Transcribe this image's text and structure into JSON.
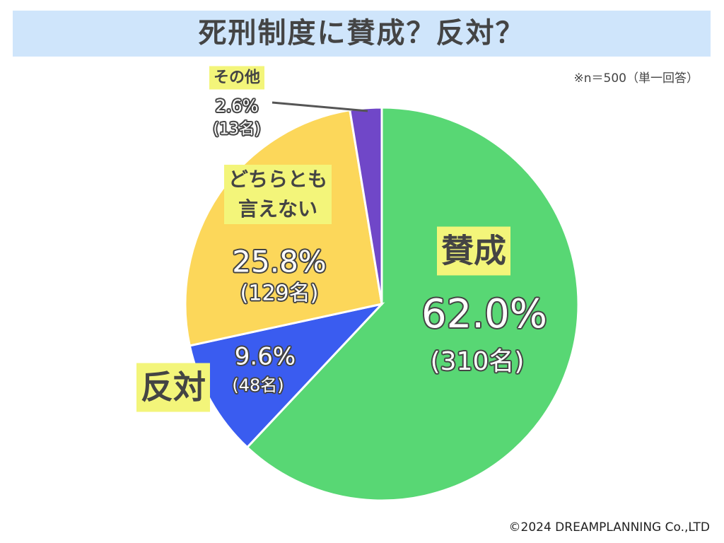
{
  "chart_data": {
    "type": "pie",
    "title": "死刑制度に賛成？反対？",
    "note": "※n＝500（単一回答）",
    "categories": [
      "賛成",
      "反対",
      "どちらとも\n言えない",
      "その他"
    ],
    "values": [
      62.0,
      9.6,
      25.8,
      2.6
    ],
    "value_labels": [
      "62.0%",
      "9.6%",
      "25.8%",
      "2.6%"
    ],
    "count_labels": [
      "(310名)",
      "(48名)",
      "(129名)",
      "(13名)"
    ],
    "colors": [
      "#58d774",
      "#3a5cf0",
      "#fcd75a",
      "#7047c8"
    ]
  },
  "footer": "©2024 DREAMPLANNING Co.,LTD"
}
